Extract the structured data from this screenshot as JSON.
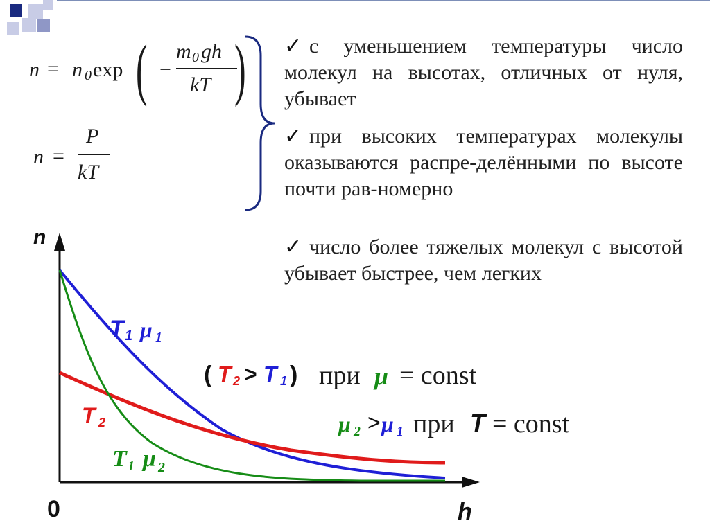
{
  "formulas": {
    "f1": {
      "lhs": "n",
      "eq": "=",
      "n0": "n",
      "n0_sub": "0",
      "exp": "exp",
      "minus": "−",
      "num": "m",
      "num_sub": "0",
      "num_rest": "gh",
      "den": "kT"
    },
    "f2": {
      "lhs": "n",
      "eq": "=",
      "num": "P",
      "den": "kT"
    }
  },
  "bullets": [
    "с уменьшением температуры число молекул на высотах, отличных от нуля, убывает",
    "при высоких температурах молекулы оказываются распре-делёнными по высоте почти рав-номерно",
    "число более тяжелых молекул с высотой убывает быстрее, чем легких"
  ],
  "check_symbol": "✓",
  "chart_data": {
    "type": "line",
    "xlabel": "h",
    "ylabel": "n",
    "origin_label": "0",
    "series": [
      {
        "name": "T1 μ1",
        "color": "#1f1fd6"
      },
      {
        "name": "T2",
        "color": "#e01b1b"
      },
      {
        "name": "T1 μ2",
        "color": "#168c16"
      }
    ]
  },
  "labels": {
    "t1mu1": {
      "T": "T",
      "Tsub": "1",
      "mu": "μ",
      "musub": "1"
    },
    "t2": {
      "T": "T",
      "Tsub": "2"
    },
    "t1mu2": {
      "T": "T",
      "Tsub": "1",
      "mu": "μ",
      "musub": "2"
    }
  },
  "annotations": {
    "a1": {
      "open": "(",
      "T2": "T",
      "T2sub": "2",
      "gt": ">",
      "T1": "T",
      "T1sub": "1",
      "close": ")",
      "text": "при",
      "mu": "μ",
      "eq": "= const"
    },
    "a2": {
      "mu2": "μ",
      "mu2sub": "2",
      "gt": ">",
      "mu1": "μ",
      "mu1sub": "1",
      "text": "при",
      "T": "T",
      "eq": "= const"
    }
  },
  "colors": {
    "blue": "#1f1fd6",
    "red": "#e01b1b",
    "green": "#168c16",
    "accent": "#1a2a80"
  }
}
